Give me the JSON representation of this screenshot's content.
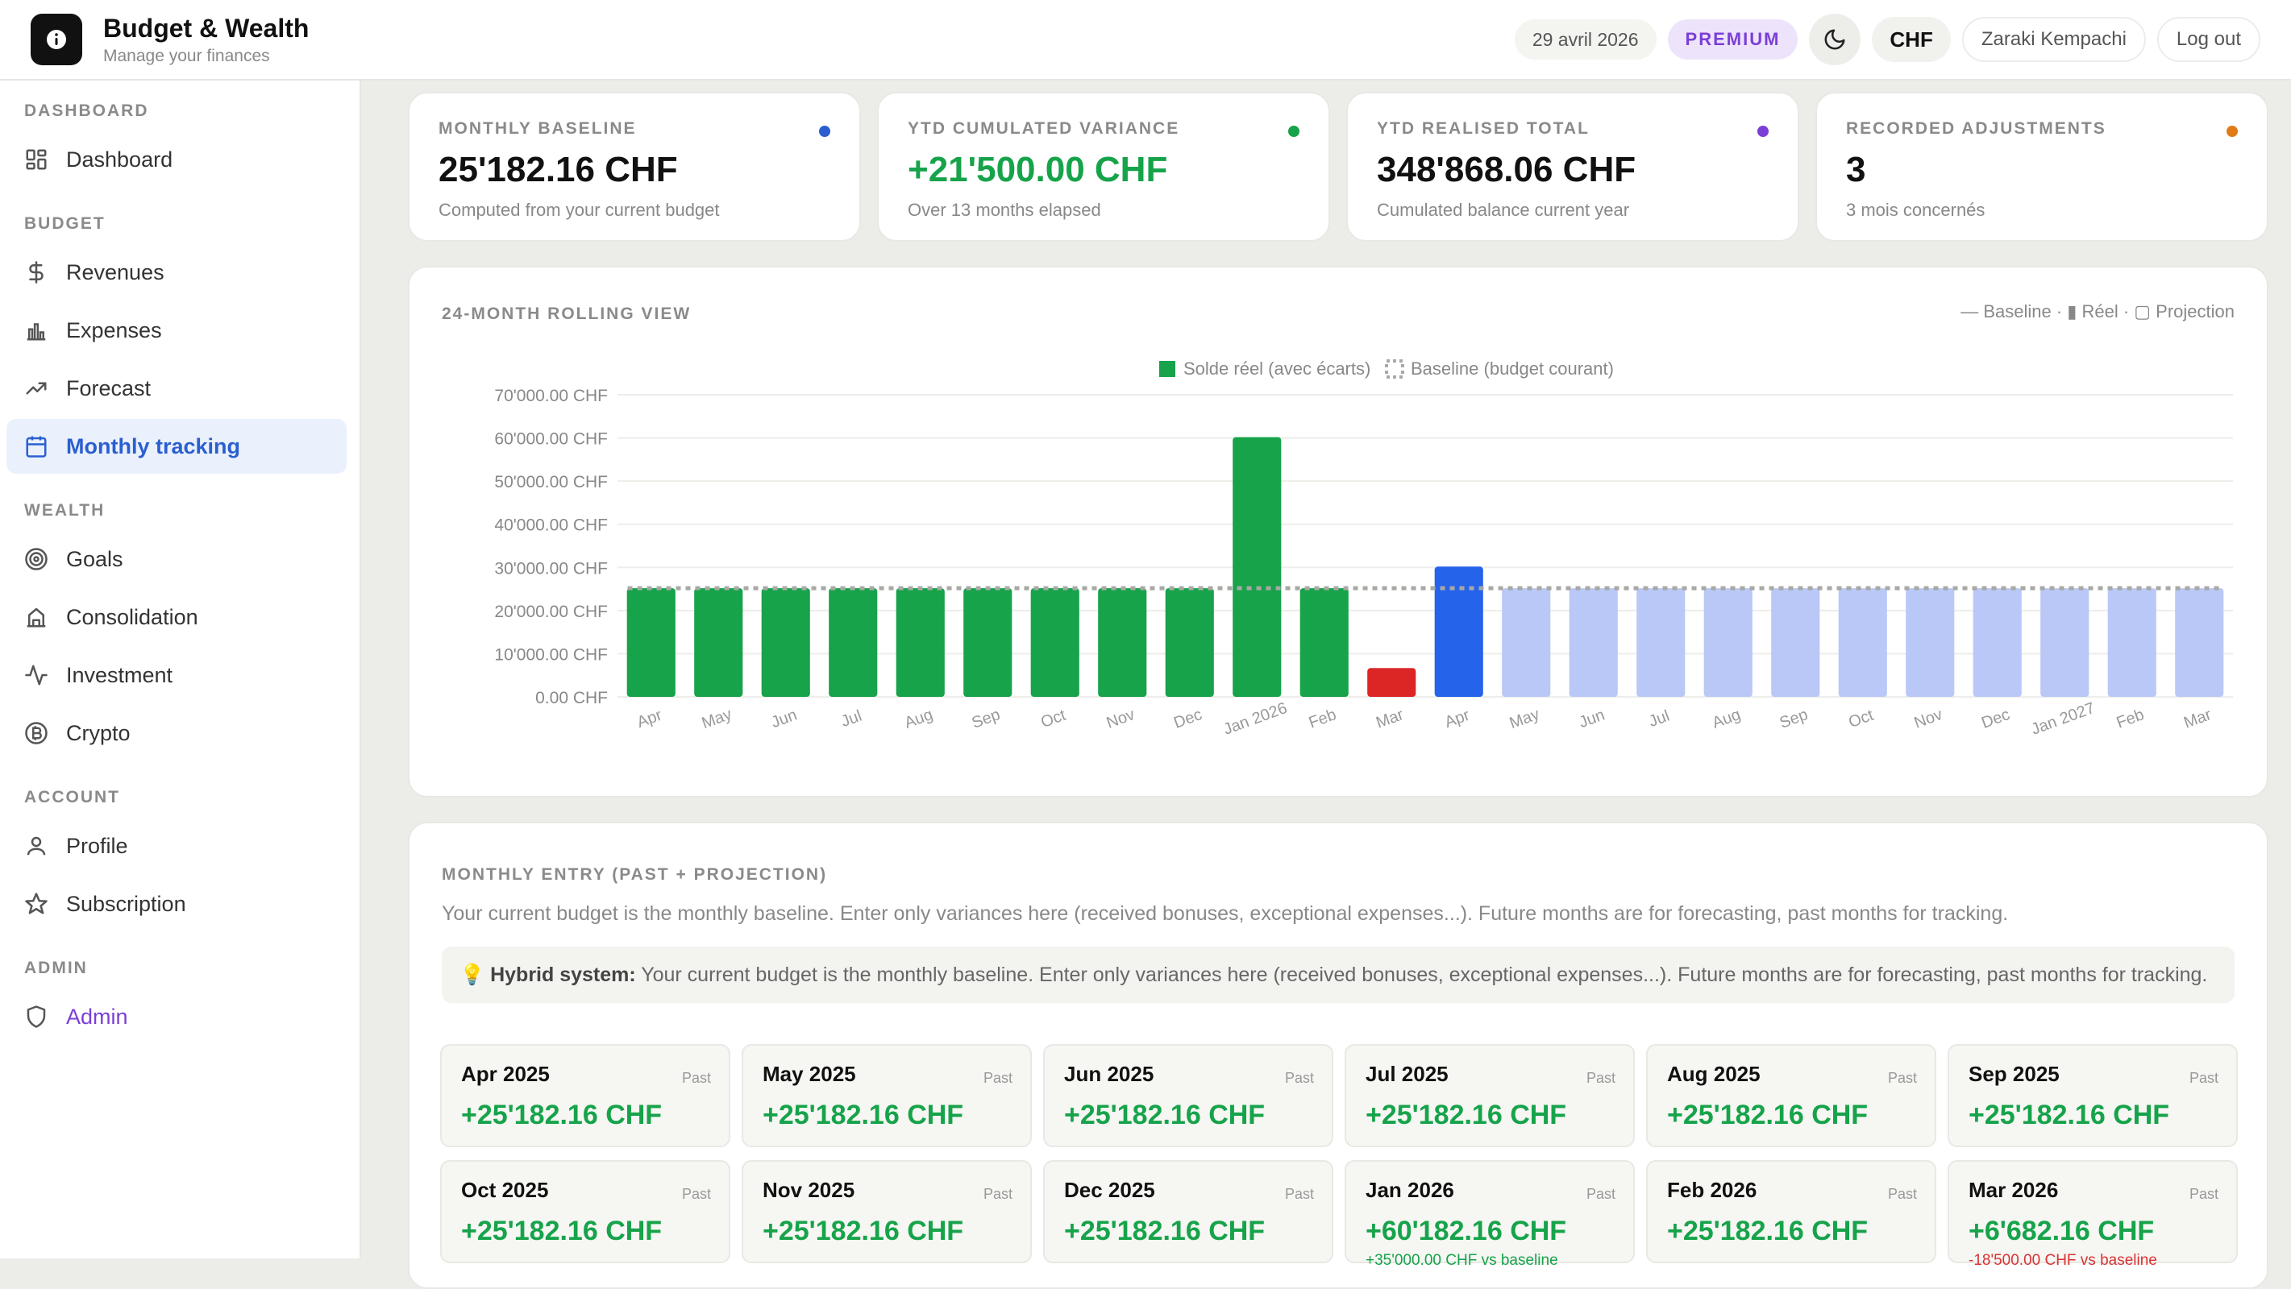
{
  "app": {
    "title": "Budget & Wealth",
    "subtitle": "Manage your finances"
  },
  "header": {
    "date": "29 avril 2026",
    "premium": "PREMIUM",
    "currency": "CHF",
    "user": "Zaraki Kempachi",
    "logout": "Log out"
  },
  "sidebar": {
    "sections": [
      {
        "label": "DASHBOARD",
        "items": [
          {
            "label": "Dashboard",
            "icon": "dashboard-icon"
          }
        ]
      },
      {
        "label": "BUDGET",
        "items": [
          {
            "label": "Revenues",
            "icon": "dollar-icon"
          },
          {
            "label": "Expenses",
            "icon": "bar-chart-icon"
          },
          {
            "label": "Forecast",
            "icon": "trending-up-icon"
          },
          {
            "label": "Monthly tracking",
            "icon": "calendar-icon",
            "active": true
          }
        ]
      },
      {
        "label": "WEALTH",
        "items": [
          {
            "label": "Goals",
            "icon": "target-icon"
          },
          {
            "label": "Consolidation",
            "icon": "bank-icon"
          },
          {
            "label": "Investment",
            "icon": "activity-icon"
          },
          {
            "label": "Crypto",
            "icon": "bitcoin-icon"
          }
        ]
      },
      {
        "label": "ACCOUNT",
        "items": [
          {
            "label": "Profile",
            "icon": "user-icon"
          },
          {
            "label": "Subscription",
            "icon": "star-icon"
          }
        ]
      },
      {
        "label": "ADMIN",
        "items": [
          {
            "label": "Admin",
            "icon": "shield-icon"
          }
        ]
      }
    ]
  },
  "stats": [
    {
      "label": "MONTHLY BASELINE",
      "value": "25'182.16 CHF",
      "sub": "Computed from your current budget",
      "dot": "#2b5fd0",
      "green": false
    },
    {
      "label": "YTD CUMULATED VARIANCE",
      "value": "+21'500.00 CHF",
      "sub": "Over 13 months elapsed",
      "dot": "#16a34a",
      "green": true
    },
    {
      "label": "YTD REALISED TOTAL",
      "value": "348'868.06 CHF",
      "sub": "Cumulated balance current year",
      "dot": "#7b3fd6",
      "green": false
    },
    {
      "label": "RECORDED ADJUSTMENTS",
      "value": "3",
      "sub": "3 mois concernés",
      "dot": "#e07b17",
      "green": false
    }
  ],
  "chart_section": {
    "title": "24-MONTH ROLLING VIEW",
    "key": "— Baseline · ▮ Réel · ▢ Projection"
  },
  "chart_data": {
    "type": "bar",
    "legend": [
      "Solde réel (avec écarts)",
      "Baseline (budget courant)"
    ],
    "categories": [
      "Apr",
      "May",
      "Jun",
      "Jul",
      "Aug",
      "Sep",
      "Oct",
      "Nov",
      "Dec",
      "Jan 2026",
      "Feb",
      "Mar",
      "Apr",
      "May",
      "Jun",
      "Jul",
      "Aug",
      "Sep",
      "Oct",
      "Nov",
      "Dec",
      "Jan 2027",
      "Feb",
      "Mar"
    ],
    "values": [
      25182.16,
      25182.16,
      25182.16,
      25182.16,
      25182.16,
      25182.16,
      25182.16,
      25182.16,
      25182.16,
      60182.16,
      25182.16,
      6682.16,
      30182.16,
      25182.16,
      25182.16,
      25182.16,
      25182.16,
      25182.16,
      25182.16,
      25182.16,
      25182.16,
      25182.16,
      25182.16,
      25182.16
    ],
    "kinds": [
      "past",
      "past",
      "past",
      "past",
      "past",
      "past",
      "past",
      "past",
      "past",
      "past",
      "past",
      "negative",
      "current",
      "projection",
      "projection",
      "projection",
      "projection",
      "projection",
      "projection",
      "projection",
      "projection",
      "projection",
      "projection",
      "projection"
    ],
    "baseline": 25182.16,
    "yticks": [
      "0.00 CHF",
      "10'000.00 CHF",
      "20'000.00 CHF",
      "30'000.00 CHF",
      "40'000.00 CHF",
      "50'000.00 CHF",
      "60'000.00 CHF",
      "70'000.00 CHF"
    ],
    "ylim": [
      0,
      70000
    ],
    "colors": {
      "past": "#16a34a",
      "negative": "#dc2626",
      "current": "#2563eb",
      "projection": "#b9c8f6",
      "baseline": "#a8a8a4"
    }
  },
  "entry": {
    "title": "MONTHLY ENTRY (PAST + PROJECTION)",
    "desc": "Your current budget is the monthly baseline. Enter only variances here (received bonuses, exceptional expenses...). Future months are for forecasting, past months for tracking.",
    "hybrid_label": "Hybrid system:",
    "hybrid_text": " Your current budget is the monthly baseline. Enter only variances here (received bonuses, exceptional expenses...). Future months are for forecasting, past months for tracking.",
    "months": [
      {
        "name": "Apr 2025",
        "tag": "Past",
        "value": "+25'182.16 CHF",
        "note": ""
      },
      {
        "name": "May 2025",
        "tag": "Past",
        "value": "+25'182.16 CHF",
        "note": ""
      },
      {
        "name": "Jun 2025",
        "tag": "Past",
        "value": "+25'182.16 CHF",
        "note": ""
      },
      {
        "name": "Jul 2025",
        "tag": "Past",
        "value": "+25'182.16 CHF",
        "note": ""
      },
      {
        "name": "Aug 2025",
        "tag": "Past",
        "value": "+25'182.16 CHF",
        "note": ""
      },
      {
        "name": "Sep 2025",
        "tag": "Past",
        "value": "+25'182.16 CHF",
        "note": ""
      },
      {
        "name": "Oct 2025",
        "tag": "Past",
        "value": "+25'182.16 CHF",
        "note": ""
      },
      {
        "name": "Nov 2025",
        "tag": "Past",
        "value": "+25'182.16 CHF",
        "note": ""
      },
      {
        "name": "Dec 2025",
        "tag": "Past",
        "value": "+25'182.16 CHF",
        "note": ""
      },
      {
        "name": "Jan 2026",
        "tag": "Past",
        "value": "+60'182.16 CHF",
        "note": "+35'000.00 CHF vs baseline",
        "note_color": "green"
      },
      {
        "name": "Feb 2026",
        "tag": "Past",
        "value": "+25'182.16 CHF",
        "note": ""
      },
      {
        "name": "Mar 2026",
        "tag": "Past",
        "value": "+6'682.16 CHF",
        "note": "-18'500.00 CHF vs baseline",
        "note_color": "red"
      }
    ]
  }
}
